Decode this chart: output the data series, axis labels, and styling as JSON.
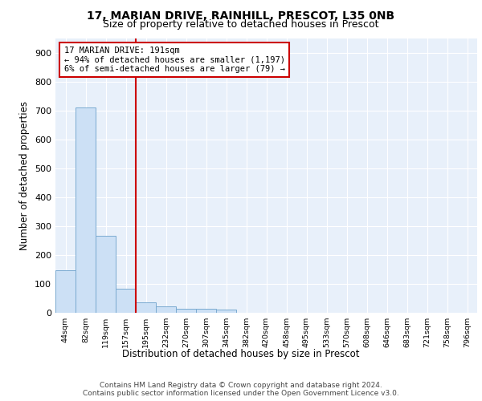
{
  "title1": "17, MARIAN DRIVE, RAINHILL, PRESCOT, L35 0NB",
  "title2": "Size of property relative to detached houses in Prescot",
  "xlabel": "Distribution of detached houses by size in Prescot",
  "ylabel": "Number of detached properties",
  "bin_labels": [
    "44sqm",
    "82sqm",
    "119sqm",
    "157sqm",
    "195sqm",
    "232sqm",
    "270sqm",
    "307sqm",
    "345sqm",
    "382sqm",
    "420sqm",
    "458sqm",
    "495sqm",
    "533sqm",
    "570sqm",
    "608sqm",
    "646sqm",
    "683sqm",
    "721sqm",
    "758sqm",
    "796sqm"
  ],
  "bar_heights": [
    148,
    711,
    265,
    84,
    35,
    22,
    13,
    13,
    12,
    0,
    0,
    0,
    0,
    0,
    0,
    0,
    0,
    0,
    0,
    0,
    0
  ],
  "bar_color": "#cce0f5",
  "bar_edge_color": "#7aaad0",
  "vline_color": "#cc0000",
  "annotation_line1": "17 MARIAN DRIVE: 191sqm",
  "annotation_line2": "← 94% of detached houses are smaller (1,197)",
  "annotation_line3": "6% of semi-detached houses are larger (79) →",
  "annotation_box_color": "#ffffff",
  "annotation_box_edge": "#cc0000",
  "ylim": [
    0,
    950
  ],
  "yticks": [
    0,
    100,
    200,
    300,
    400,
    500,
    600,
    700,
    800,
    900
  ],
  "footer_text": "Contains HM Land Registry data © Crown copyright and database right 2024.\nContains public sector information licensed under the Open Government Licence v3.0.",
  "plot_bg_color": "#e8f0fa",
  "grid_color": "#ffffff"
}
